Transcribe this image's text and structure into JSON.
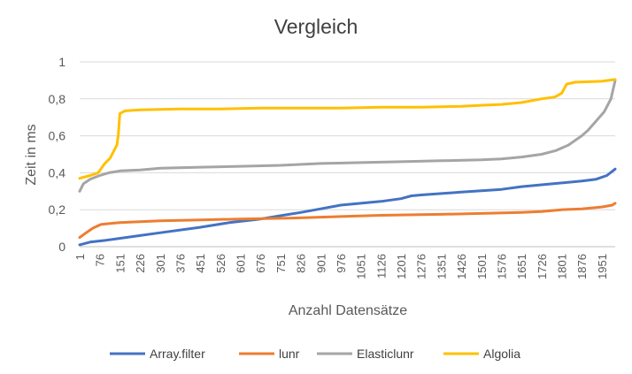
{
  "chart_data": {
    "type": "line",
    "title": "Vergleich",
    "xlabel": "Anzahl Datensätze",
    "ylabel": "Zeit in ms",
    "ylim": [
      0,
      1
    ],
    "y_ticks": [
      "0",
      "0,2",
      "0,4",
      "0,6",
      "0,8",
      "1"
    ],
    "x_tick_labels": [
      "1",
      "76",
      "151",
      "226",
      "301",
      "376",
      "451",
      "526",
      "601",
      "676",
      "751",
      "826",
      "901",
      "976",
      "1051",
      "1126",
      "1201",
      "1276",
      "1351",
      "1426",
      "1501",
      "1576",
      "1651",
      "1726",
      "1801",
      "1876",
      "1951"
    ],
    "x_range": [
      1,
      2001
    ],
    "grid": true,
    "legend_position": "bottom",
    "series": [
      {
        "name": "Array.filter",
        "color": "#4472C4",
        "points": [
          [
            1,
            0.01
          ],
          [
            40,
            0.025
          ],
          [
            100,
            0.035
          ],
          [
            200,
            0.055
          ],
          [
            300,
            0.075
          ],
          [
            450,
            0.105
          ],
          [
            560,
            0.13
          ],
          [
            676,
            0.15
          ],
          [
            760,
            0.17
          ],
          [
            826,
            0.185
          ],
          [
            901,
            0.205
          ],
          [
            976,
            0.225
          ],
          [
            1051,
            0.235
          ],
          [
            1126,
            0.245
          ],
          [
            1201,
            0.26
          ],
          [
            1240,
            0.275
          ],
          [
            1276,
            0.28
          ],
          [
            1426,
            0.295
          ],
          [
            1576,
            0.31
          ],
          [
            1651,
            0.325
          ],
          [
            1726,
            0.335
          ],
          [
            1801,
            0.345
          ],
          [
            1876,
            0.355
          ],
          [
            1930,
            0.365
          ],
          [
            1970,
            0.385
          ],
          [
            2001,
            0.42
          ]
        ]
      },
      {
        "name": "lunr",
        "color": "#ED7D31",
        "points": [
          [
            1,
            0.05
          ],
          [
            20,
            0.07
          ],
          [
            50,
            0.1
          ],
          [
            80,
            0.12
          ],
          [
            110,
            0.125
          ],
          [
            151,
            0.13
          ],
          [
            300,
            0.14
          ],
          [
            450,
            0.145
          ],
          [
            600,
            0.15
          ],
          [
            800,
            0.155
          ],
          [
            900,
            0.16
          ],
          [
            1126,
            0.17
          ],
          [
            1351,
            0.175
          ],
          [
            1501,
            0.18
          ],
          [
            1651,
            0.185
          ],
          [
            1726,
            0.19
          ],
          [
            1801,
            0.2
          ],
          [
            1876,
            0.205
          ],
          [
            1951,
            0.215
          ],
          [
            1990,
            0.225
          ],
          [
            2001,
            0.235
          ]
        ]
      },
      {
        "name": "Elasticlunr",
        "color": "#A5A5A5",
        "points": [
          [
            1,
            0.3
          ],
          [
            15,
            0.34
          ],
          [
            40,
            0.365
          ],
          [
            76,
            0.385
          ],
          [
            110,
            0.4
          ],
          [
            151,
            0.41
          ],
          [
            226,
            0.415
          ],
          [
            301,
            0.425
          ],
          [
            451,
            0.43
          ],
          [
            600,
            0.435
          ],
          [
            751,
            0.44
          ],
          [
            901,
            0.45
          ],
          [
            1051,
            0.455
          ],
          [
            1201,
            0.46
          ],
          [
            1351,
            0.465
          ],
          [
            1501,
            0.47
          ],
          [
            1576,
            0.475
          ],
          [
            1651,
            0.485
          ],
          [
            1726,
            0.5
          ],
          [
            1780,
            0.52
          ],
          [
            1826,
            0.55
          ],
          [
            1876,
            0.6
          ],
          [
            1900,
            0.63
          ],
          [
            1930,
            0.68
          ],
          [
            1960,
            0.73
          ],
          [
            1985,
            0.8
          ],
          [
            2001,
            0.9
          ]
        ]
      },
      {
        "name": "Algolia",
        "color": "#FFC000",
        "points": [
          [
            1,
            0.37
          ],
          [
            40,
            0.385
          ],
          [
            70,
            0.4
          ],
          [
            95,
            0.45
          ],
          [
            115,
            0.48
          ],
          [
            140,
            0.55
          ],
          [
            145,
            0.6
          ],
          [
            151,
            0.72
          ],
          [
            170,
            0.735
          ],
          [
            226,
            0.74
          ],
          [
            376,
            0.745
          ],
          [
            526,
            0.745
          ],
          [
            676,
            0.75
          ],
          [
            826,
            0.75
          ],
          [
            976,
            0.75
          ],
          [
            1126,
            0.755
          ],
          [
            1276,
            0.755
          ],
          [
            1426,
            0.76
          ],
          [
            1500,
            0.765
          ],
          [
            1576,
            0.77
          ],
          [
            1651,
            0.78
          ],
          [
            1726,
            0.8
          ],
          [
            1776,
            0.81
          ],
          [
            1801,
            0.83
          ],
          [
            1820,
            0.88
          ],
          [
            1851,
            0.89
          ],
          [
            1951,
            0.895
          ],
          [
            2001,
            0.905
          ]
        ]
      }
    ]
  }
}
